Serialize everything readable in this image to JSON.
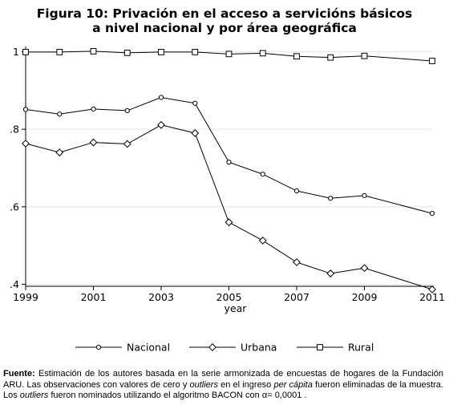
{
  "chart_data": {
    "type": "line",
    "title_lines": [
      "Figura  10: Privación en el acceso a servicións básicos",
      "a nivel nacional y por área geográfica"
    ],
    "xlabel": "year",
    "ylabel": "",
    "x": [
      1999,
      2000,
      2001,
      2002,
      2003,
      2004,
      2005,
      2006,
      2007,
      2008,
      2009,
      2010,
      2011
    ],
    "xticks": [
      "1999",
      "2001",
      "2003",
      "2005",
      "2007",
      "2009",
      "2011"
    ],
    "yticks": [
      {
        "value": 0.4,
        "label": ".4"
      },
      {
        "value": 0.6,
        "label": ".6"
      },
      {
        "value": 0.8,
        "label": ".8"
      },
      {
        "value": 1.0,
        "label": "1"
      }
    ],
    "xlim": [
      1999,
      2011
    ],
    "ylim": [
      0.395,
      1.005
    ],
    "grid": true,
    "legend_position": "bottom",
    "series": [
      {
        "name": "Nacional",
        "marker": "circle",
        "values": [
          0.851,
          0.839,
          0.852,
          0.848,
          0.882,
          0.867,
          0.715,
          0.684,
          0.641,
          0.622,
          0.629,
          null,
          0.583
        ]
      },
      {
        "name": "Urbana",
        "marker": "diamond",
        "values": [
          0.763,
          0.74,
          0.766,
          0.762,
          0.811,
          0.79,
          0.56,
          0.513,
          0.457,
          0.428,
          0.442,
          null,
          0.387
        ]
      },
      {
        "name": "Rural",
        "marker": "square",
        "values": [
          0.999,
          0.999,
          1.001,
          0.997,
          0.999,
          0.999,
          0.994,
          0.996,
          0.988,
          0.985,
          0.989,
          null,
          0.976
        ]
      }
    ]
  },
  "note": {
    "label": "Fuente:",
    "text1": " Estimación de los autores basada en la serie armonizada de encuestas de hogares de la Fundación ARU. Las observaciones con valores de cero y ",
    "italic1": "outliers",
    "text2": " en el ingreso ",
    "italic2": "per cápita",
    "text3": " fueron eliminadas de la muestra. Los ",
    "italic3": "outliers",
    "text4": " fueron nominados utilizando  el algoritmo BACON con ",
    "alpha": "α=",
    "alpha_value": " 0,0001 ."
  }
}
